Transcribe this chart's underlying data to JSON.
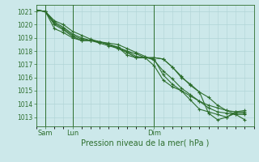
{
  "bg_color": "#cce8ea",
  "grid_color": "#b0d4d6",
  "line_color": "#2d6e2d",
  "title": "Pression niveau de la mer( hPa )",
  "ylim": [
    1012.3,
    1021.5
  ],
  "yticks": [
    1013,
    1014,
    1015,
    1016,
    1017,
    1018,
    1019,
    1020,
    1021
  ],
  "xlim": [
    0,
    24
  ],
  "xtick_positions": [
    1,
    4,
    13
  ],
  "xtick_labels": [
    "Sam",
    "Lun",
    "Dim"
  ],
  "vline_positions": [
    1,
    4,
    13
  ],
  "lines": [
    {
      "x": [
        0,
        1,
        2,
        3,
        4,
        5,
        6,
        7,
        8,
        9,
        10,
        11,
        12,
        13,
        14,
        15,
        16,
        17,
        18,
        19,
        20,
        21,
        22,
        23
      ],
      "y": [
        1021.1,
        1021.0,
        1020.3,
        1020.0,
        1019.5,
        1019.2,
        1018.9,
        1018.7,
        1018.5,
        1018.3,
        1018.0,
        1017.6,
        1017.5,
        1017.5,
        1017.4,
        1016.8,
        1016.1,
        1015.4,
        1014.9,
        1014.5,
        1013.9,
        1013.5,
        1013.4,
        1013.4
      ]
    },
    {
      "x": [
        0,
        1,
        2,
        3,
        4,
        5,
        6,
        7,
        8,
        9,
        10,
        11,
        12,
        13,
        14,
        15,
        16,
        17,
        18,
        19,
        20,
        21,
        22,
        23
      ],
      "y": [
        1021.1,
        1021.0,
        1020.2,
        1019.8,
        1019.3,
        1019.0,
        1018.8,
        1018.7,
        1018.6,
        1018.5,
        1018.2,
        1017.9,
        1017.6,
        1017.3,
        1016.5,
        1015.9,
        1015.2,
        1014.7,
        1014.2,
        1013.7,
        1013.4,
        1013.3,
        1013.2,
        1013.2
      ]
    },
    {
      "x": [
        0,
        1,
        2,
        3,
        4,
        5,
        6,
        7,
        8,
        9,
        10,
        11,
        12,
        13,
        14,
        15,
        16,
        17,
        18,
        19,
        20,
        21,
        22,
        23
      ],
      "y": [
        1021.1,
        1021.0,
        1020.1,
        1019.7,
        1019.2,
        1018.9,
        1018.8,
        1018.7,
        1018.5,
        1018.2,
        1018.0,
        1017.8,
        1017.5,
        1017.4,
        1016.2,
        1015.5,
        1015.0,
        1014.6,
        1014.2,
        1013.9,
        1013.7,
        1013.5,
        1013.2,
        1012.8
      ]
    },
    {
      "x": [
        0,
        1,
        2,
        3,
        4,
        5,
        6,
        7,
        8,
        9,
        10,
        11,
        12,
        13,
        14,
        15,
        16,
        17,
        18,
        19,
        20,
        21,
        22,
        23
      ],
      "y": [
        1021.1,
        1021.0,
        1020.0,
        1019.6,
        1019.1,
        1018.8,
        1018.8,
        1018.7,
        1018.5,
        1018.3,
        1017.7,
        1017.5,
        1017.5,
        1016.9,
        1015.8,
        1015.3,
        1015.0,
        1014.3,
        1013.6,
        1013.4,
        1013.2,
        1013.0,
        1013.3,
        1013.3
      ]
    },
    {
      "x": [
        0,
        1,
        2,
        3,
        4,
        5,
        6,
        7,
        8,
        9,
        10,
        11,
        12,
        13,
        14,
        15,
        16,
        17,
        18,
        19,
        20,
        21,
        22,
        23
      ],
      "y": [
        1021.1,
        1021.0,
        1019.7,
        1019.4,
        1019.0,
        1018.8,
        1018.8,
        1018.6,
        1018.4,
        1018.2,
        1017.9,
        1017.5,
        1017.5,
        1017.5,
        1017.4,
        1016.8,
        1016.0,
        1015.5,
        1014.9,
        1013.3,
        1012.8,
        1013.0,
        1013.4,
        1013.5
      ]
    }
  ],
  "marker": "+",
  "markersize": 3,
  "linewidth": 0.8,
  "ytick_fontsize": 5.5,
  "xtick_fontsize": 6,
  "xlabel_fontsize": 7
}
